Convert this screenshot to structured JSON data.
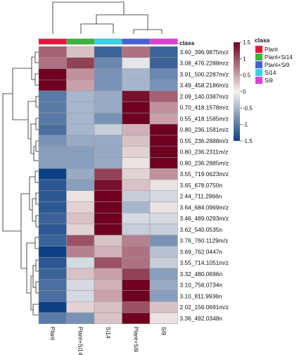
{
  "chart_data": {
    "type": "heatmap",
    "annotation_title": "class",
    "columns": [
      "Plant",
      "Plant+Si14",
      "Si14",
      "Plant+Si9",
      "Si9"
    ],
    "rows": [
      "3.60_396.9875m/z",
      "3.08_476.2288m/z",
      "3.91_500.2287m/z",
      "3.49_458.2186m/z",
      "2.09_140.0387m/z",
      "0.70_418.1578m/z",
      "0.55_418.1585m/z",
      "0.80_236.1581m/z",
      "0.55_236.2888m/z",
      "0.80_236.2311m/z",
      "0.80_236.2885m/z",
      "3.55_719.0623m/z",
      "3.65_678.0750n",
      "2.44_711.2866n",
      "3.64_684.0969m/z",
      "3.46_489.0293m/z",
      "3.62_540.0535n",
      "3.76_760.1129m/z",
      "3.69_762.0447n",
      "3.55_714.1051m/z",
      "3.32_480.0696n",
      "3.10_758.0734n",
      "3.10_811.9936n",
      "2.02_156.0691m/z",
      "3.36_492.0348n"
    ],
    "values": [
      [
        0.9,
        0.3,
        -1.2,
        0.8,
        -1.2
      ],
      [
        0.8,
        1.1,
        -0.9,
        -0.1,
        -1.2
      ],
      [
        1.5,
        0.6,
        -0.8,
        -0.5,
        -0.9
      ],
      [
        1.5,
        0.5,
        -0.8,
        -0.5,
        -0.8
      ],
      [
        -1.0,
        -0.5,
        -0.6,
        1.4,
        0.9
      ],
      [
        -1.0,
        -0.5,
        -0.6,
        1.5,
        0.6
      ],
      [
        -1.0,
        -0.5,
        -0.8,
        1.6,
        0.5
      ],
      [
        -1.1,
        -0.5,
        -0.3,
        0.4,
        1.5
      ],
      [
        -0.8,
        -0.6,
        -0.6,
        0.3,
        1.5
      ],
      [
        -0.7,
        -0.7,
        -0.6,
        0.2,
        1.6
      ],
      [
        -0.7,
        -0.7,
        -0.6,
        0.1,
        1.6
      ],
      [
        -1.5,
        -0.6,
        1.1,
        0.2,
        0.6
      ],
      [
        -1.3,
        -0.7,
        1.4,
        0.3,
        0.1
      ],
      [
        -1.3,
        0.1,
        1.6,
        -0.3,
        -0.2
      ],
      [
        -1.3,
        0.2,
        1.5,
        -0.5,
        0.1
      ],
      [
        -1.2,
        0.3,
        1.5,
        -0.2,
        -0.2
      ],
      [
        -1.3,
        0.2,
        1.5,
        -0.3,
        -0.3
      ],
      [
        -1.2,
        1.0,
        0.3,
        0.7,
        -0.8
      ],
      [
        -1.6,
        0.7,
        0.4,
        0.8,
        -0.4
      ],
      [
        -1.3,
        -0.2,
        1.0,
        0.8,
        -0.3
      ],
      [
        -1.2,
        0.3,
        0.5,
        1.1,
        -0.7
      ],
      [
        -1.1,
        -0.2,
        0.4,
        1.5,
        -0.6
      ],
      [
        -1.1,
        -0.2,
        0.5,
        1.5,
        -0.7
      ],
      [
        -1.7,
        0.2,
        0.3,
        1.0,
        0.3
      ],
      [
        -1.0,
        -0.8,
        0.3,
        1.5,
        0.1
      ]
    ],
    "scale": {
      "min": -1.5,
      "max": 1.5,
      "ticks": [
        "1.5",
        "1",
        "0.5",
        "0",
        "-0.5",
        "-1",
        "-1.5"
      ],
      "low_color": "#0d3f83",
      "mid_color": "#f4f2f0",
      "high_color": "#6f0020"
    },
    "legend": {
      "title": "class",
      "entries": [
        {
          "label": "Plant",
          "color": "#e4163f"
        },
        {
          "label": "Plant+Si14",
          "color": "#3ab53a"
        },
        {
          "label": "Plant+Si9",
          "color": "#4a5fd2"
        },
        {
          "label": "Si14",
          "color": "#34d2e8"
        },
        {
          "label": "Si9",
          "color": "#dd40d8"
        }
      ]
    },
    "column_class_colors": [
      "#e4163f",
      "#3ab53a",
      "#34d2e8",
      "#4a5fd2",
      "#dd40d8"
    ]
  }
}
